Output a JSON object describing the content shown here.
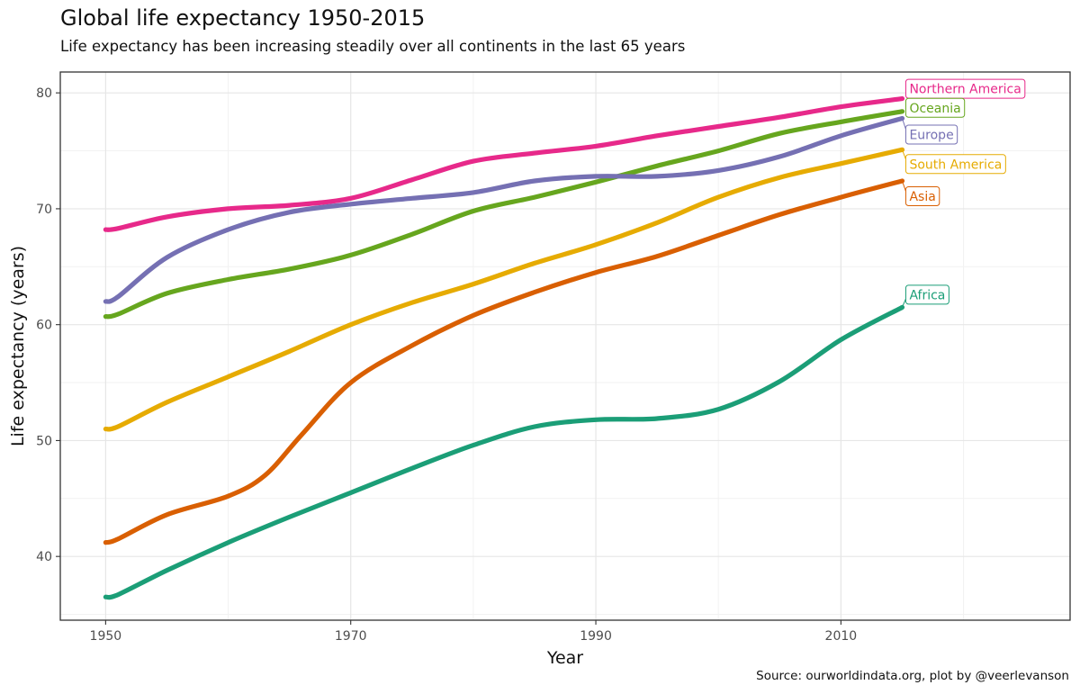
{
  "title": "Global life expectancy 1950-2015",
  "subtitle": "Life expectancy has been increasing steadily over all continents in the last 65 years",
  "caption": "Source: ourworldindata.org, plot by @veerlevanson",
  "chart_data": {
    "type": "line",
    "xlabel": "Year",
    "ylabel": "Life expectancy (years)",
    "xlim": [
      1946.3,
      2028.7
    ],
    "ylim": [
      34.5,
      81.8
    ],
    "x_ticks": [
      1950,
      1970,
      1990,
      2010
    ],
    "y_ticks": [
      40,
      50,
      60,
      70,
      80
    ],
    "grid": true,
    "legend": "direct-labels-at-line-ends",
    "series": [
      {
        "name": "Northern America",
        "color": "#e7298a",
        "points": [
          [
            1950,
            68.2
          ],
          [
            1951,
            68.3
          ],
          [
            1955,
            69.3
          ],
          [
            1960,
            70.0
          ],
          [
            1965,
            70.3
          ],
          [
            1970,
            70.9
          ],
          [
            1975,
            72.5
          ],
          [
            1980,
            74.1
          ],
          [
            1985,
            74.8
          ],
          [
            1990,
            75.4
          ],
          [
            1995,
            76.3
          ],
          [
            2000,
            77.1
          ],
          [
            2005,
            77.9
          ],
          [
            2010,
            78.8
          ],
          [
            2015,
            79.5
          ]
        ]
      },
      {
        "name": "Oceania",
        "color": "#66a61e",
        "points": [
          [
            1950,
            60.7
          ],
          [
            1951,
            60.9
          ],
          [
            1955,
            62.7
          ],
          [
            1960,
            63.9
          ],
          [
            1965,
            64.8
          ],
          [
            1970,
            66.0
          ],
          [
            1975,
            67.8
          ],
          [
            1980,
            69.8
          ],
          [
            1985,
            71.0
          ],
          [
            1990,
            72.3
          ],
          [
            1995,
            73.7
          ],
          [
            2000,
            75.0
          ],
          [
            2005,
            76.5
          ],
          [
            2010,
            77.5
          ],
          [
            2015,
            78.4
          ]
        ]
      },
      {
        "name": "Europe",
        "color": "#7570b3",
        "points": [
          [
            1950,
            62.0
          ],
          [
            1951,
            62.4
          ],
          [
            1955,
            65.8
          ],
          [
            1960,
            68.2
          ],
          [
            1965,
            69.7
          ],
          [
            1970,
            70.4
          ],
          [
            1975,
            70.9
          ],
          [
            1980,
            71.4
          ],
          [
            1985,
            72.4
          ],
          [
            1990,
            72.8
          ],
          [
            1995,
            72.8
          ],
          [
            2000,
            73.3
          ],
          [
            2005,
            74.5
          ],
          [
            2010,
            76.3
          ],
          [
            2015,
            77.8
          ]
        ]
      },
      {
        "name": "South America",
        "color": "#e6ab02",
        "points": [
          [
            1950,
            51.0
          ],
          [
            1951,
            51.2
          ],
          [
            1955,
            53.3
          ],
          [
            1960,
            55.5
          ],
          [
            1965,
            57.7
          ],
          [
            1970,
            60.0
          ],
          [
            1975,
            61.9
          ],
          [
            1980,
            63.5
          ],
          [
            1985,
            65.3
          ],
          [
            1990,
            66.9
          ],
          [
            1995,
            68.8
          ],
          [
            2000,
            71.0
          ],
          [
            2005,
            72.7
          ],
          [
            2010,
            73.9
          ],
          [
            2015,
            75.1
          ]
        ]
      },
      {
        "name": "Asia",
        "color": "#d95f02",
        "points": [
          [
            1950,
            41.2
          ],
          [
            1951,
            41.5
          ],
          [
            1955,
            43.6
          ],
          [
            1960,
            45.2
          ],
          [
            1963,
            47.0
          ],
          [
            1966,
            50.5
          ],
          [
            1970,
            55.0
          ],
          [
            1975,
            58.2
          ],
          [
            1980,
            60.8
          ],
          [
            1985,
            62.8
          ],
          [
            1990,
            64.5
          ],
          [
            1995,
            65.9
          ],
          [
            2000,
            67.7
          ],
          [
            2005,
            69.5
          ],
          [
            2010,
            71.0
          ],
          [
            2015,
            72.4
          ]
        ]
      },
      {
        "name": "Africa",
        "color": "#1b9e77",
        "points": [
          [
            1950,
            36.5
          ],
          [
            1951,
            36.7
          ],
          [
            1955,
            38.8
          ],
          [
            1960,
            41.2
          ],
          [
            1965,
            43.4
          ],
          [
            1970,
            45.5
          ],
          [
            1975,
            47.6
          ],
          [
            1980,
            49.6
          ],
          [
            1985,
            51.2
          ],
          [
            1990,
            51.8
          ],
          [
            1995,
            51.9
          ],
          [
            2000,
            52.7
          ],
          [
            2005,
            55.1
          ],
          [
            2010,
            58.7
          ],
          [
            2015,
            61.5
          ]
        ]
      }
    ]
  }
}
